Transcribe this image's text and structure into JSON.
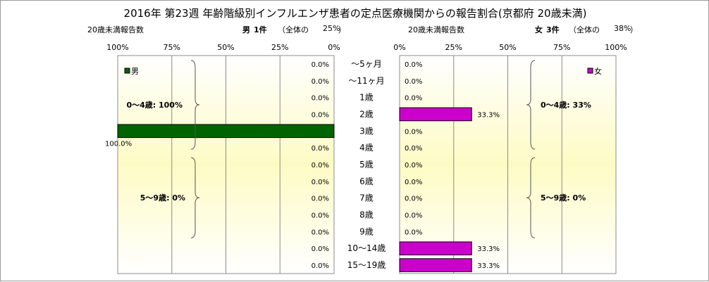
{
  "title": "2016年 第23週 年齢階級別インフルエンザ患者の定点医療機関からの報告割合(京都府 20歳未満)",
  "male_panel": {
    "header_left": "20歳未満報告数",
    "sex": "男",
    "count_label": "1件",
    "share_prefix": "（全体の",
    "share_value": "25%",
    "share_suffix": "）",
    "legend": "男",
    "group_upper": "0～4歳: 100%",
    "group_lower": "5～9歳: 0%",
    "bar_color": "#006400",
    "ticks": [
      "100%",
      "75%",
      "50%",
      "25%",
      "0%"
    ]
  },
  "female_panel": {
    "header_left": "20歳未満報告数",
    "sex": "女",
    "count_label": "3件",
    "share_prefix": "（全体の",
    "share_value": "38%",
    "share_suffix": "）",
    "legend": "女",
    "group_upper": "0～4歳: 33%",
    "group_lower": "5～9歳: 0%",
    "bar_color": "#cc00cc",
    "ticks": [
      "0%",
      "25%",
      "50%",
      "75%",
      "100%"
    ]
  },
  "chart_data": {
    "type": "bar",
    "orientation": "horizontal",
    "title": "2016年 第23週 年齢階級別インフルエンザ患者の定点医療機関からの報告割合(京都府 20歳未満)",
    "categories": [
      "～5ヶ月",
      "～11ヶ月",
      "1歳",
      "2歳",
      "3歳",
      "4歳",
      "5歳",
      "6歳",
      "7歳",
      "8歳",
      "9歳",
      "10～14歳",
      "15～19歳"
    ],
    "series": [
      {
        "name": "男",
        "values": [
          0,
          0,
          0,
          0,
          100,
          0,
          0,
          0,
          0,
          0,
          0,
          0,
          0
        ],
        "labels": [
          "0.0%",
          "0.0%",
          "0.0%",
          "0.0%",
          "100.0%",
          "0.0%",
          "0.0%",
          "0.0%",
          "0.0%",
          "0.0%",
          "0.0%",
          "0.0%",
          "0.0%"
        ]
      },
      {
        "name": "女",
        "values": [
          0,
          0,
          0,
          33.3,
          0,
          0,
          0,
          0,
          0,
          0,
          0,
          33.3,
          33.3
        ],
        "labels": [
          "0.0%",
          "0.0%",
          "0.0%",
          "33.3%",
          "0.0%",
          "0.0%",
          "0.0%",
          "0.0%",
          "0.0%",
          "0.0%",
          "0.0%",
          "33.3%",
          "33.3%"
        ]
      }
    ],
    "xlim": [
      0,
      100
    ],
    "grid": true,
    "legend_position": "top-corner"
  }
}
